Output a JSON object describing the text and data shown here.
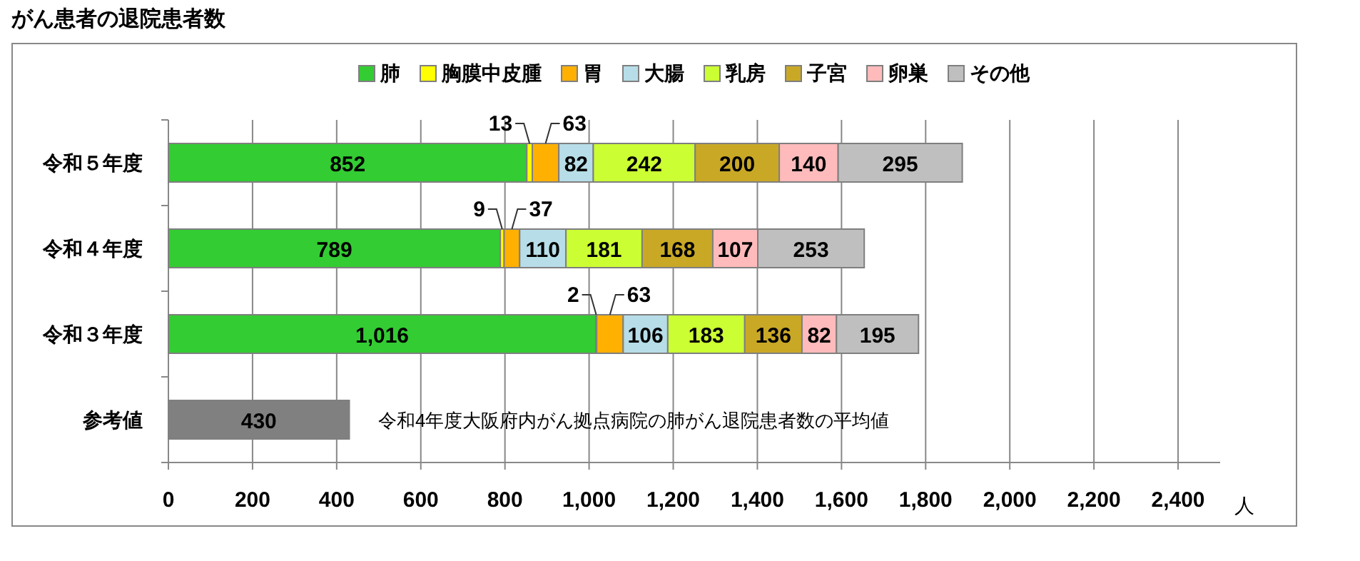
{
  "chart_data": {
    "type": "bar",
    "orientation": "horizontal",
    "stacked": true,
    "title": "がん患者の退院患者数",
    "xlabel": "人",
    "categories": [
      "令和５年度",
      "令和４年度",
      "令和３年度",
      "参考値"
    ],
    "series": [
      {
        "name": "肺",
        "color": "#33cc33",
        "values": [
          852,
          789,
          1016,
          null
        ],
        "value_labels": [
          "852",
          "789",
          "1,016",
          null
        ]
      },
      {
        "name": "胸膜中皮腫",
        "color": "#ffff00",
        "values": [
          13,
          9,
          2,
          null
        ],
        "value_labels": [
          "13",
          "9",
          "2",
          null
        ]
      },
      {
        "name": "胃",
        "color": "#ffb000",
        "values": [
          63,
          37,
          63,
          null
        ],
        "value_labels": [
          "63",
          "37",
          "63",
          null
        ]
      },
      {
        "name": "大腸",
        "color": "#b7dde8",
        "values": [
          82,
          110,
          106,
          null
        ],
        "value_labels": [
          "82",
          "110",
          "106",
          null
        ]
      },
      {
        "name": "乳房",
        "color": "#ccff33",
        "values": [
          242,
          181,
          183,
          null
        ],
        "value_labels": [
          "242",
          "181",
          "183",
          null
        ]
      },
      {
        "name": "子宮",
        "color": "#c9a826",
        "values": [
          200,
          168,
          136,
          null
        ],
        "value_labels": [
          "200",
          "168",
          "136",
          null
        ]
      },
      {
        "name": "卵巣",
        "color": "#ffbbbb",
        "values": [
          140,
          107,
          82,
          null
        ],
        "value_labels": [
          "140",
          "107",
          "82",
          null
        ]
      },
      {
        "name": "その他",
        "color": "#bfbfbf",
        "values": [
          295,
          253,
          195,
          null
        ],
        "value_labels": [
          "295",
          "253",
          "195",
          null
        ]
      },
      {
        "color": "#808080",
        "values": [
          null,
          null,
          null,
          430
        ],
        "value_labels": [
          null,
          null,
          null,
          "430"
        ]
      }
    ],
    "xlim": [
      0,
      2500
    ],
    "xticks": [
      0,
      200,
      400,
      600,
      800,
      {
        "value": 1000,
        "label": "1,000"
      },
      {
        "value": 1200,
        "label": "1,200"
      },
      {
        "value": 1400,
        "label": "1,400"
      },
      {
        "value": 1600,
        "label": "1,600"
      },
      {
        "value": 1800,
        "label": "1,800"
      },
      {
        "value": 2000,
        "label": "2,000"
      },
      {
        "value": 2200,
        "label": "2,200"
      },
      {
        "value": 2400,
        "label": "2,400"
      }
    ],
    "grid": "x",
    "legend": "top",
    "annotations": [
      "令和4年度大阪府内がん拠点病院の肺がん退院患者数の平均値"
    ]
  }
}
